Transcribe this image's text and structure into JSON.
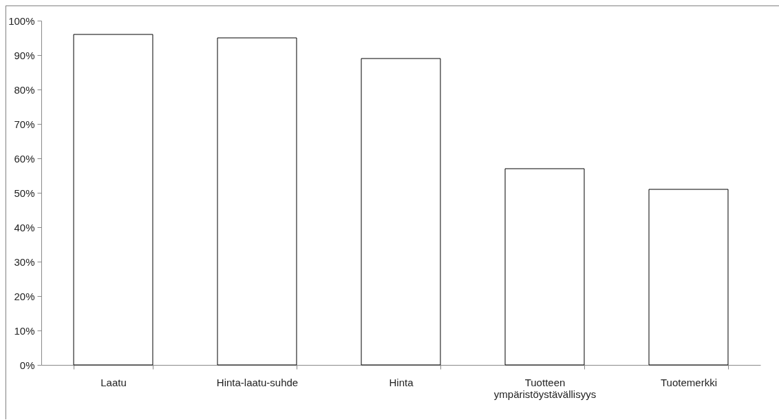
{
  "chart_data": {
    "type": "bar",
    "categories": [
      "Laatu",
      "Hinta-laatu-suhde",
      "Hinta",
      "Tuotteen ympäristöystävällisyys",
      "Tuotemerkki"
    ],
    "values": [
      96,
      95,
      89,
      57,
      51
    ],
    "color": "#ffffff",
    "ylim": [
      0,
      100
    ],
    "yticks": [
      {
        "value": 0,
        "label": "0%"
      },
      {
        "value": 10,
        "label": "10%"
      },
      {
        "value": 20,
        "label": "20%"
      },
      {
        "value": 30,
        "label": "30%"
      },
      {
        "value": 40,
        "label": "40%"
      },
      {
        "value": 50,
        "label": "50%"
      },
      {
        "value": 60,
        "label": "60%"
      },
      {
        "value": 70,
        "label": "70%"
      },
      {
        "value": 80,
        "label": "80%"
      },
      {
        "value": 90,
        "label": "90%"
      },
      {
        "value": 100,
        "label": "100%"
      }
    ],
    "grid": false
  }
}
